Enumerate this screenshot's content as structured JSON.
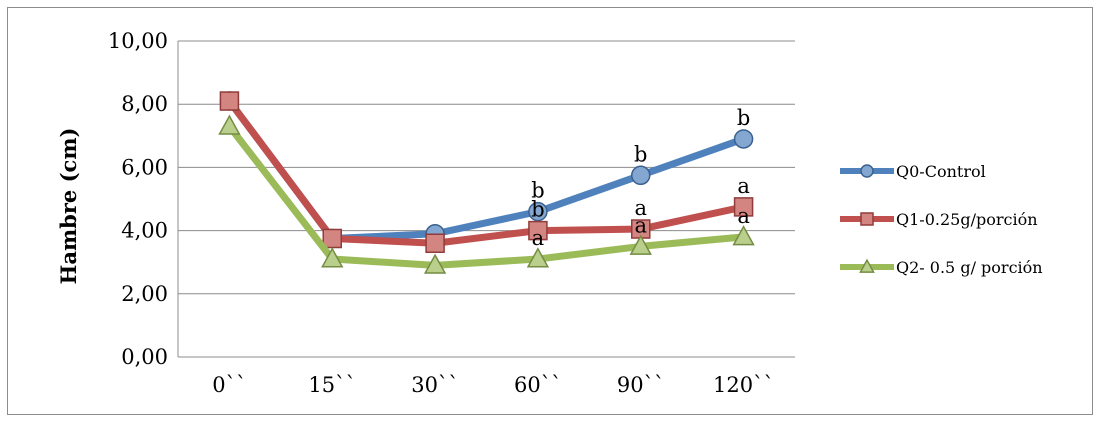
{
  "chart_data": {
    "type": "line",
    "ylabel": "Hambre (cm)",
    "categories": [
      "0``",
      "15``",
      "30``",
      "60``",
      "90``",
      "120``"
    ],
    "ylim": [
      0,
      10
    ],
    "y_ticks": [
      "0,00",
      "2,00",
      "4,00",
      "6,00",
      "8,00",
      "10,00"
    ],
    "grid": true,
    "legend_position": "right",
    "series": [
      {
        "name": "Q0-Control",
        "color": "#4f81bd",
        "marker": "circle",
        "values": [
          8.1,
          3.75,
          3.9,
          4.6,
          5.75,
          6.9
        ],
        "labels": [
          "",
          "",
          "",
          "b",
          "b",
          "b"
        ]
      },
      {
        "name": "Q1-0.25g/porción",
        "color": "#c0504d",
        "marker": "square",
        "values": [
          8.1,
          3.75,
          3.6,
          4.0,
          4.05,
          4.75
        ],
        "labels": [
          "",
          "",
          "",
          "b",
          "a",
          "a"
        ]
      },
      {
        "name": "Q2- 0.5 g/ porción",
        "color": "#9bbb59",
        "marker": "triangle",
        "values": [
          7.3,
          3.1,
          2.9,
          3.1,
          3.5,
          3.8
        ],
        "labels": [
          "",
          "",
          "",
          "a",
          "a",
          "a"
        ]
      }
    ]
  }
}
